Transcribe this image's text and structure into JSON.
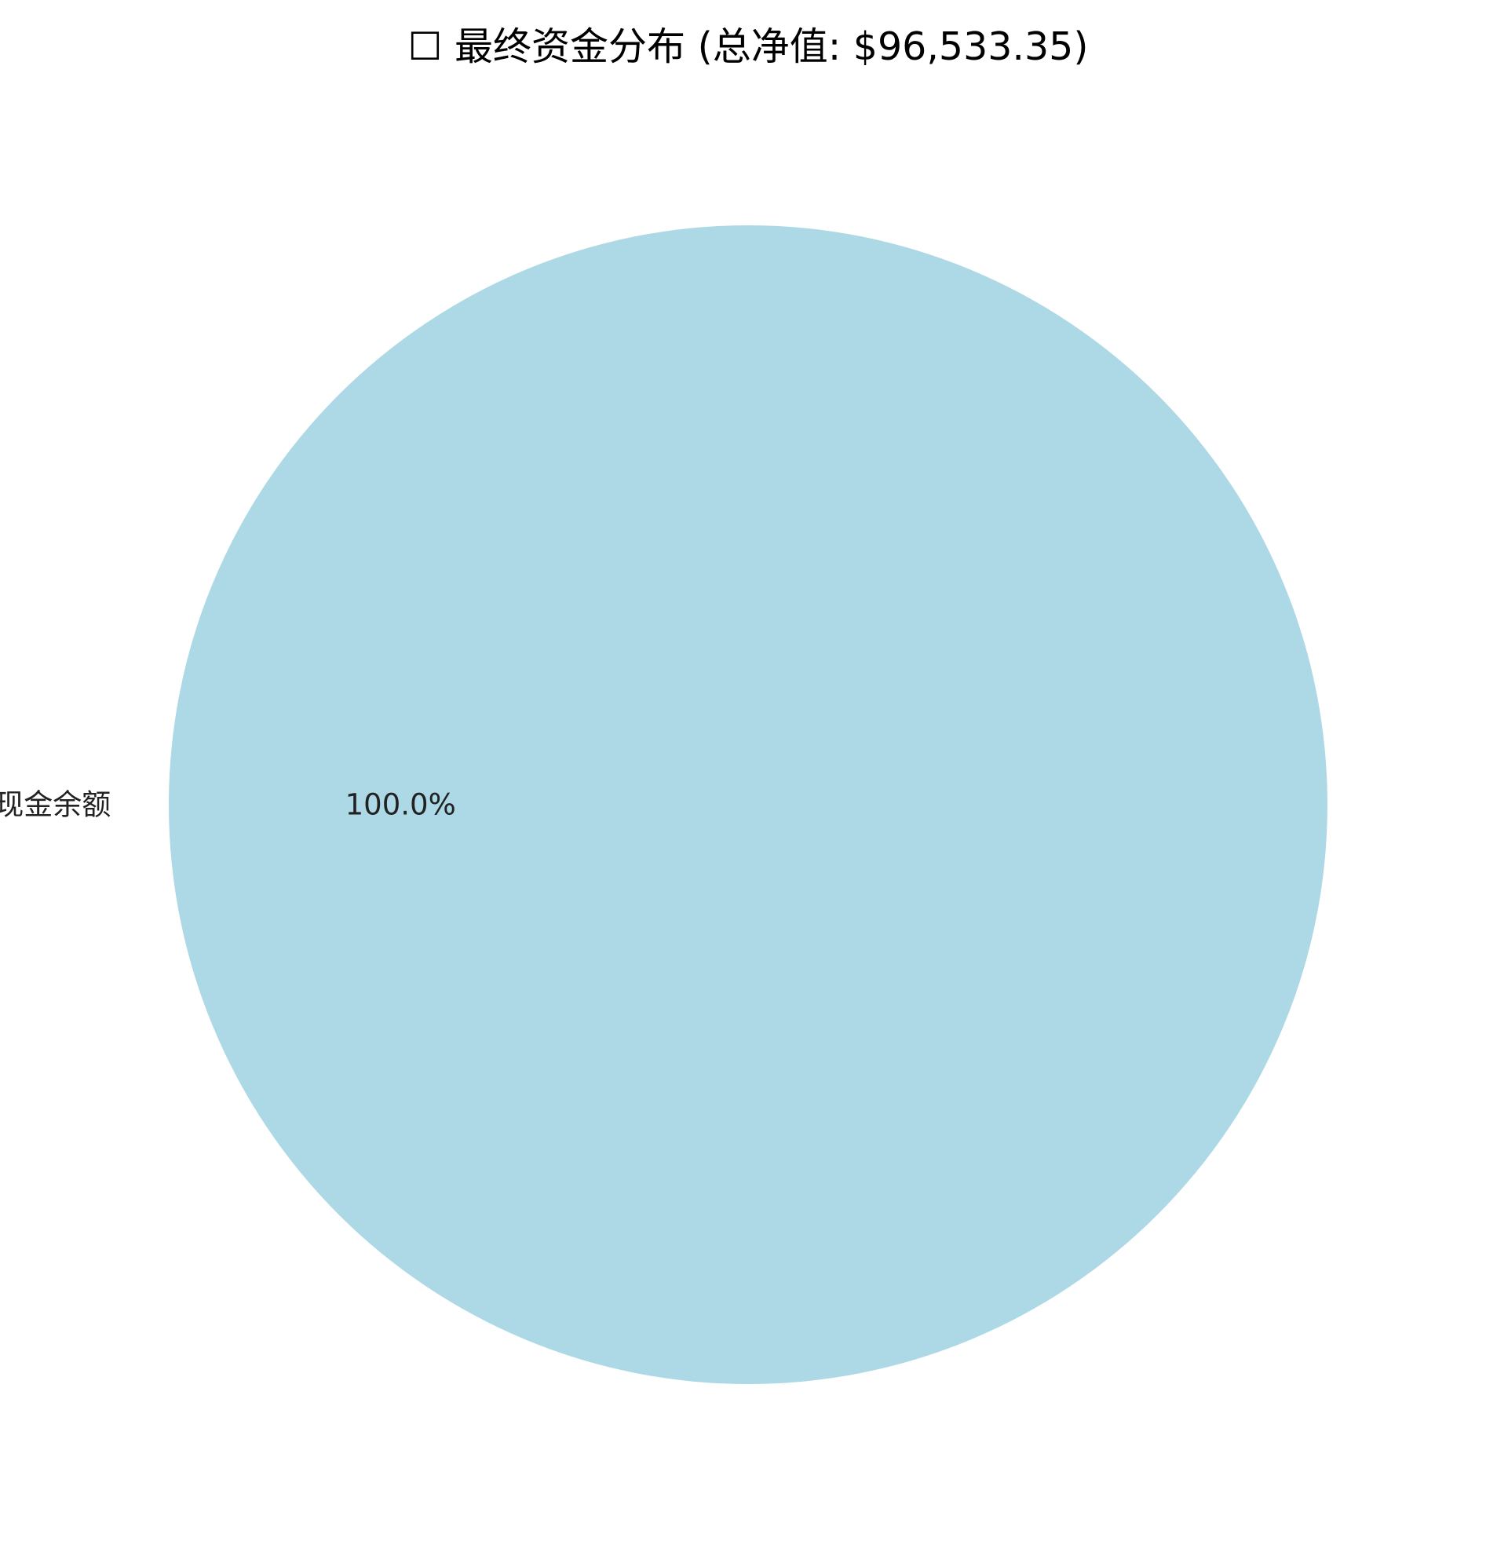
{
  "chart_data": {
    "type": "pie",
    "title": "☐ 最终资金分布 (总净值: $96,533.35)",
    "slices": [
      {
        "label": "现金余额",
        "value": 100.0,
        "percent_label": "100.0%",
        "color": "#ADD8E6"
      }
    ],
    "legend": "none"
  }
}
